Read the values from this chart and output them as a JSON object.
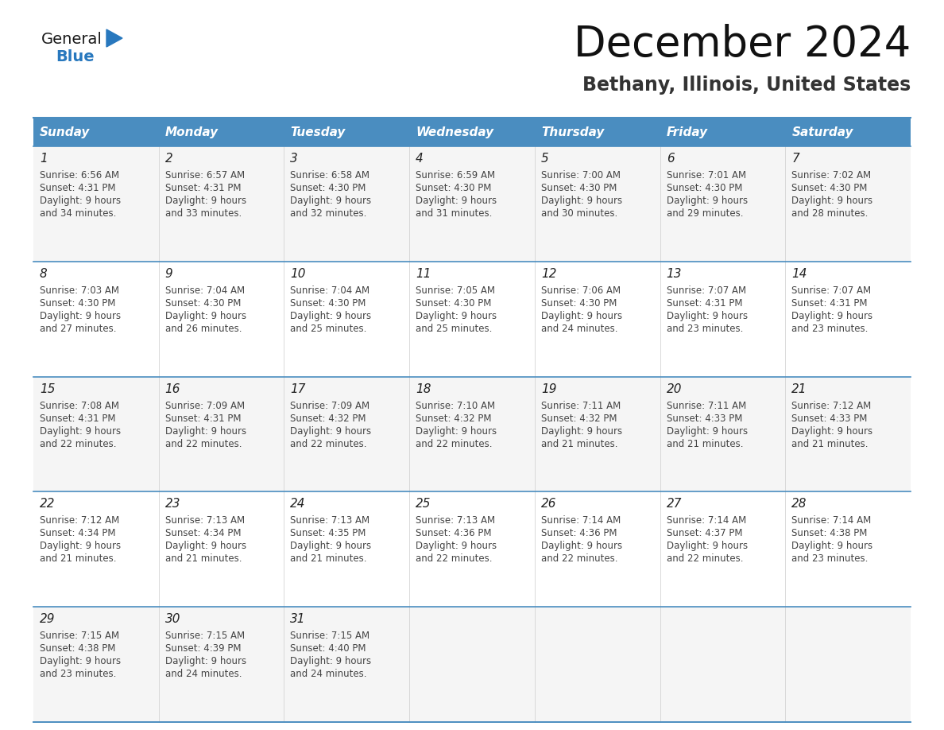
{
  "title": "December 2024",
  "subtitle": "Bethany, Illinois, United States",
  "header_bg_color": "#4A8DC0",
  "header_text_color": "#FFFFFF",
  "day_names": [
    "Sunday",
    "Monday",
    "Tuesday",
    "Wednesday",
    "Thursday",
    "Friday",
    "Saturday"
  ],
  "line_color": "#4A8DC0",
  "text_color": "#333333",
  "calendar_data": [
    [
      {
        "day": 1,
        "sunrise": "6:56 AM",
        "sunset": "4:31 PM",
        "daylight": "9 hours and 34 minutes"
      },
      {
        "day": 2,
        "sunrise": "6:57 AM",
        "sunset": "4:31 PM",
        "daylight": "9 hours and 33 minutes"
      },
      {
        "day": 3,
        "sunrise": "6:58 AM",
        "sunset": "4:30 PM",
        "daylight": "9 hours and 32 minutes"
      },
      {
        "day": 4,
        "sunrise": "6:59 AM",
        "sunset": "4:30 PM",
        "daylight": "9 hours and 31 minutes"
      },
      {
        "day": 5,
        "sunrise": "7:00 AM",
        "sunset": "4:30 PM",
        "daylight": "9 hours and 30 minutes"
      },
      {
        "day": 6,
        "sunrise": "7:01 AM",
        "sunset": "4:30 PM",
        "daylight": "9 hours and 29 minutes"
      },
      {
        "day": 7,
        "sunrise": "7:02 AM",
        "sunset": "4:30 PM",
        "daylight": "9 hours and 28 minutes"
      }
    ],
    [
      {
        "day": 8,
        "sunrise": "7:03 AM",
        "sunset": "4:30 PM",
        "daylight": "9 hours and 27 minutes"
      },
      {
        "day": 9,
        "sunrise": "7:04 AM",
        "sunset": "4:30 PM",
        "daylight": "9 hours and 26 minutes"
      },
      {
        "day": 10,
        "sunrise": "7:04 AM",
        "sunset": "4:30 PM",
        "daylight": "9 hours and 25 minutes"
      },
      {
        "day": 11,
        "sunrise": "7:05 AM",
        "sunset": "4:30 PM",
        "daylight": "9 hours and 25 minutes"
      },
      {
        "day": 12,
        "sunrise": "7:06 AM",
        "sunset": "4:30 PM",
        "daylight": "9 hours and 24 minutes"
      },
      {
        "day": 13,
        "sunrise": "7:07 AM",
        "sunset": "4:31 PM",
        "daylight": "9 hours and 23 minutes"
      },
      {
        "day": 14,
        "sunrise": "7:07 AM",
        "sunset": "4:31 PM",
        "daylight": "9 hours and 23 minutes"
      }
    ],
    [
      {
        "day": 15,
        "sunrise": "7:08 AM",
        "sunset": "4:31 PM",
        "daylight": "9 hours and 22 minutes"
      },
      {
        "day": 16,
        "sunrise": "7:09 AM",
        "sunset": "4:31 PM",
        "daylight": "9 hours and 22 minutes"
      },
      {
        "day": 17,
        "sunrise": "7:09 AM",
        "sunset": "4:32 PM",
        "daylight": "9 hours and 22 minutes"
      },
      {
        "day": 18,
        "sunrise": "7:10 AM",
        "sunset": "4:32 PM",
        "daylight": "9 hours and 22 minutes"
      },
      {
        "day": 19,
        "sunrise": "7:11 AM",
        "sunset": "4:32 PM",
        "daylight": "9 hours and 21 minutes"
      },
      {
        "day": 20,
        "sunrise": "7:11 AM",
        "sunset": "4:33 PM",
        "daylight": "9 hours and 21 minutes"
      },
      {
        "day": 21,
        "sunrise": "7:12 AM",
        "sunset": "4:33 PM",
        "daylight": "9 hours and 21 minutes"
      }
    ],
    [
      {
        "day": 22,
        "sunrise": "7:12 AM",
        "sunset": "4:34 PM",
        "daylight": "9 hours and 21 minutes"
      },
      {
        "day": 23,
        "sunrise": "7:13 AM",
        "sunset": "4:34 PM",
        "daylight": "9 hours and 21 minutes"
      },
      {
        "day": 24,
        "sunrise": "7:13 AM",
        "sunset": "4:35 PM",
        "daylight": "9 hours and 21 minutes"
      },
      {
        "day": 25,
        "sunrise": "7:13 AM",
        "sunset": "4:36 PM",
        "daylight": "9 hours and 22 minutes"
      },
      {
        "day": 26,
        "sunrise": "7:14 AM",
        "sunset": "4:36 PM",
        "daylight": "9 hours and 22 minutes"
      },
      {
        "day": 27,
        "sunrise": "7:14 AM",
        "sunset": "4:37 PM",
        "daylight": "9 hours and 22 minutes"
      },
      {
        "day": 28,
        "sunrise": "7:14 AM",
        "sunset": "4:38 PM",
        "daylight": "9 hours and 23 minutes"
      }
    ],
    [
      {
        "day": 29,
        "sunrise": "7:15 AM",
        "sunset": "4:38 PM",
        "daylight": "9 hours and 23 minutes"
      },
      {
        "day": 30,
        "sunrise": "7:15 AM",
        "sunset": "4:39 PM",
        "daylight": "9 hours and 24 minutes"
      },
      {
        "day": 31,
        "sunrise": "7:15 AM",
        "sunset": "4:40 PM",
        "daylight": "9 hours and 24 minutes"
      },
      null,
      null,
      null,
      null
    ]
  ],
  "logo_color_general": "#1a1a1a",
  "logo_color_blue": "#2878BE",
  "logo_triangle_color": "#2878BE",
  "fig_width": 11.88,
  "fig_height": 9.18,
  "dpi": 100
}
